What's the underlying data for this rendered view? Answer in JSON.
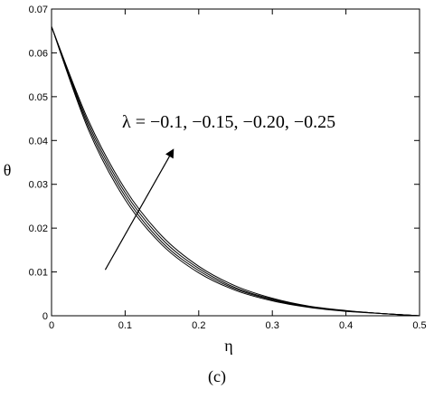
{
  "chart_data": {
    "type": "line",
    "title": "",
    "xlabel": "η",
    "ylabel": "θ",
    "xlim": [
      0,
      0.5
    ],
    "ylim": [
      0,
      0.07
    ],
    "xticks": [
      0,
      0.1,
      0.2,
      0.3,
      0.4,
      0.5
    ],
    "xtick_labels": [
      "0",
      "0.1",
      "0.2",
      "0.3",
      "0.4",
      "0.5"
    ],
    "yticks": [
      0,
      0.01,
      0.02,
      0.03,
      0.04,
      0.05,
      0.06,
      0.07
    ],
    "ytick_labels": [
      "0",
      "0.01",
      "0.02",
      "0.03",
      "0.04",
      "0.05",
      "0.06",
      "0.07"
    ],
    "grid": false,
    "line_color": "#000000",
    "series": [
      {
        "values": [
          0.066,
          0.0425,
          0.0265,
          0.0162,
          0.0098,
          0.0058,
          0.0034,
          0.0019,
          0.001,
          0.0005,
          0.0
        ]
      },
      {
        "values": [
          0.066,
          0.0432,
          0.0273,
          0.0168,
          0.0103,
          0.0061,
          0.0036,
          0.002,
          0.0011,
          0.0005,
          0.0
        ]
      },
      {
        "values": [
          0.066,
          0.0439,
          0.0281,
          0.0175,
          0.0108,
          0.0064,
          0.0038,
          0.0021,
          0.0011,
          0.0005,
          0.0
        ]
      },
      {
        "values": [
          0.066,
          0.0446,
          0.0289,
          0.0182,
          0.0113,
          0.0068,
          0.004,
          0.0022,
          0.0012,
          0.0005,
          0.0
        ]
      }
    ],
    "x": [
      0,
      0.05,
      0.1,
      0.15,
      0.2,
      0.25,
      0.3,
      0.35,
      0.4,
      0.45,
      0.5
    ],
    "annotation": {
      "text": "λ = −0.1, −0.15, −0.20, −0.25",
      "arrow_start": [
        0.073,
        0.0105
      ],
      "arrow_end": [
        0.165,
        0.0378
      ]
    }
  },
  "caption": "(c)"
}
